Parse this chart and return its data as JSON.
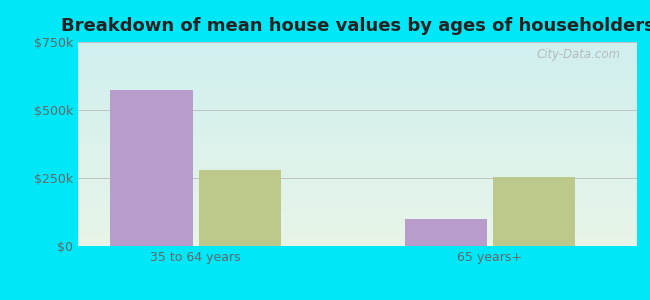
{
  "title": "Breakdown of mean house values by ages of householders",
  "categories": [
    "35 to 64 years",
    "65 years+"
  ],
  "series": {
    "North Philipsburg": [
      575000,
      100000
    ],
    "Pennsylvania": [
      280000,
      255000
    ]
  },
  "bar_colors": {
    "North Philipsburg": "#b89dcc",
    "Pennsylvania": "#bcc98a"
  },
  "ylim": [
    0,
    750000
  ],
  "yticks": [
    0,
    250000,
    500000,
    750000
  ],
  "ytick_labels": [
    "$0",
    "$250k",
    "$500k",
    "$750k"
  ],
  "bar_width": 0.28,
  "outer_background": "#00e8f8",
  "plot_bg_topleft": "#d0efef",
  "plot_bg_bottomright": "#e8f5e8",
  "title_fontsize": 13,
  "axis_label_fontsize": 9,
  "legend_fontsize": 9.5,
  "watermark": "City-Data.com"
}
